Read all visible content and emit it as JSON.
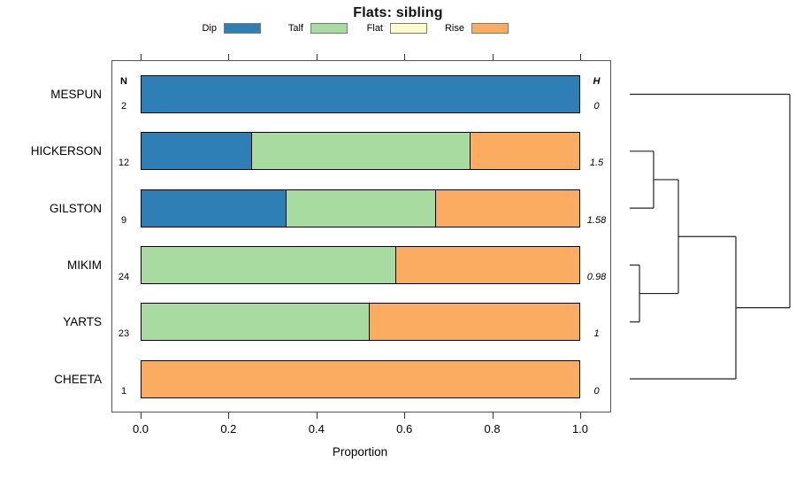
{
  "chart_data": {
    "type": "bar",
    "orientation": "horizontal",
    "stacked": true,
    "title": "Flats: sibling",
    "xlabel": "Proportion",
    "xlim": [
      0,
      1
    ],
    "xticks": [
      {
        "value": 0.0,
        "label": "0.0"
      },
      {
        "value": 0.2,
        "label": "0.2"
      },
      {
        "value": 0.4,
        "label": "0.4"
      },
      {
        "value": 0.6,
        "label": "0.6"
      },
      {
        "value": 0.8,
        "label": "0.8"
      },
      {
        "value": 1.0,
        "label": "1.0"
      }
    ],
    "grid": false,
    "legend_position": "top",
    "categories": [
      {
        "name": "Dip",
        "color": "#2E7FB6"
      },
      {
        "name": "Talf",
        "color": "#A8DBA0"
      },
      {
        "name": "Flat",
        "color": "#FFFFCC"
      },
      {
        "name": "Rise",
        "color": "#FBAC61"
      }
    ],
    "n_header": "N",
    "h_header": "H",
    "rows": [
      {
        "label": "MESPUN",
        "n": "2",
        "h": "0",
        "values": [
          1,
          0,
          0,
          0
        ]
      },
      {
        "label": "HICKERSON",
        "n": "12",
        "h": "1.5",
        "values": [
          0.25,
          0.5,
          0,
          0.25
        ]
      },
      {
        "label": "GILSTON",
        "n": "9",
        "h": "1.58",
        "values": [
          0.33,
          0.34,
          0,
          0.33
        ]
      },
      {
        "label": "MIKIM",
        "n": "24",
        "h": "0.98",
        "values": [
          0,
          0.58,
          0,
          0.42
        ]
      },
      {
        "label": "YARTS",
        "n": "23",
        "h": "1",
        "values": [
          0,
          0.52,
          0,
          0.48
        ]
      },
      {
        "label": "CHEETA",
        "n": "1",
        "h": "0",
        "values": [
          0,
          0,
          0,
          1
        ]
      }
    ],
    "dendrogram": {
      "type": "right-side cluster tree",
      "leaf_order": [
        "MESPUN",
        "HICKERSON",
        "GILSTON",
        "MIKIM",
        "YARTS",
        "CHEETA"
      ],
      "merges": [
        {
          "a": "MIKIM",
          "b": "YARTS",
          "height_frac": 0.061
        },
        {
          "a": "HICKERSON",
          "b": "GILSTON",
          "height_frac": 0.149
        },
        {
          "a": "m1",
          "b": "m0",
          "height_frac": 0.304
        },
        {
          "a": "m2",
          "b": "CHEETA",
          "height_frac": 0.663
        },
        {
          "a": "MESPUN",
          "b": "m3",
          "height_frac": 1.0
        }
      ]
    }
  }
}
